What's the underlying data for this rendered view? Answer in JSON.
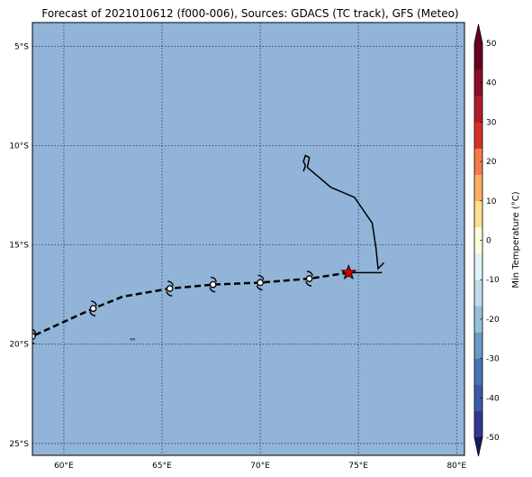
{
  "title": "Forecast of 2021010612 (f000-006), Sources: GDACS (TC track), GFS (Meteo)",
  "map": {
    "lon_range": [
      58.4,
      80.4
    ],
    "lat_range": [
      -25.6,
      -3.8
    ],
    "lon_ticks": [
      {
        "value": 60,
        "label": "60°E"
      },
      {
        "value": 65,
        "label": "65°E"
      },
      {
        "value": 70,
        "label": "70°E"
      },
      {
        "value": 75,
        "label": "75°E"
      },
      {
        "value": 80,
        "label": "80°E"
      }
    ],
    "lat_ticks": [
      {
        "value": -5,
        "label": "5°S"
      },
      {
        "value": -10,
        "label": "10°S"
      },
      {
        "value": -15,
        "label": "15°S"
      },
      {
        "value": -20,
        "label": "20°S"
      },
      {
        "value": -25,
        "label": "25°S"
      }
    ],
    "ocean_color": "#91b4d8",
    "grid": "dotted",
    "past_track": [
      [
        76.3,
        -15.9
      ],
      [
        76.0,
        -16.2
      ],
      [
        75.9,
        -15.2
      ],
      [
        75.7,
        -13.9
      ],
      [
        74.8,
        -12.6
      ],
      [
        73.6,
        -12.1
      ],
      [
        72.4,
        -11.1
      ],
      [
        72.5,
        -10.6
      ],
      [
        72.3,
        -10.5
      ],
      [
        72.2,
        -10.8
      ],
      [
        72.3,
        -11.0
      ],
      [
        72.2,
        -11.3
      ]
    ],
    "past_track_tail": [
      [
        74.5,
        -16.4
      ],
      [
        76.2,
        -16.4
      ]
    ],
    "forecast_track": [
      [
        74.5,
        -16.4
      ],
      [
        72.5,
        -16.7
      ],
      [
        70.0,
        -16.9
      ],
      [
        67.6,
        -17.0
      ],
      [
        65.4,
        -17.2
      ],
      [
        63.0,
        -17.6
      ],
      [
        61.5,
        -18.2
      ],
      [
        58.4,
        -19.6
      ]
    ],
    "current_position": [
      74.5,
      -16.4
    ],
    "storm_symbols": [
      [
        72.5,
        -16.7
      ],
      [
        70.0,
        -16.9
      ],
      [
        67.6,
        -17.0
      ],
      [
        65.4,
        -17.2
      ],
      [
        61.5,
        -18.2
      ],
      [
        58.4,
        -19.6
      ]
    ],
    "islet": [
      63.5,
      -19.75
    ]
  },
  "colorbar": {
    "label": "Min Temperature (°C)",
    "ticks": [
      -50,
      -40,
      -30,
      -20,
      -10,
      0,
      10,
      20,
      30,
      40,
      50
    ],
    "colors": [
      "#313695",
      "#3b5aa8",
      "#4575b4",
      "#6a9ac8",
      "#94c0dc",
      "#c0dcec",
      "#e0f3f8",
      "#fefedf",
      "#fee090",
      "#fdae61",
      "#f67b4a",
      "#d73027",
      "#b21b2c",
      "#8c0b25",
      "#67001f"
    ],
    "under_color": "#1a1a5e",
    "over_color": "#67001f"
  }
}
